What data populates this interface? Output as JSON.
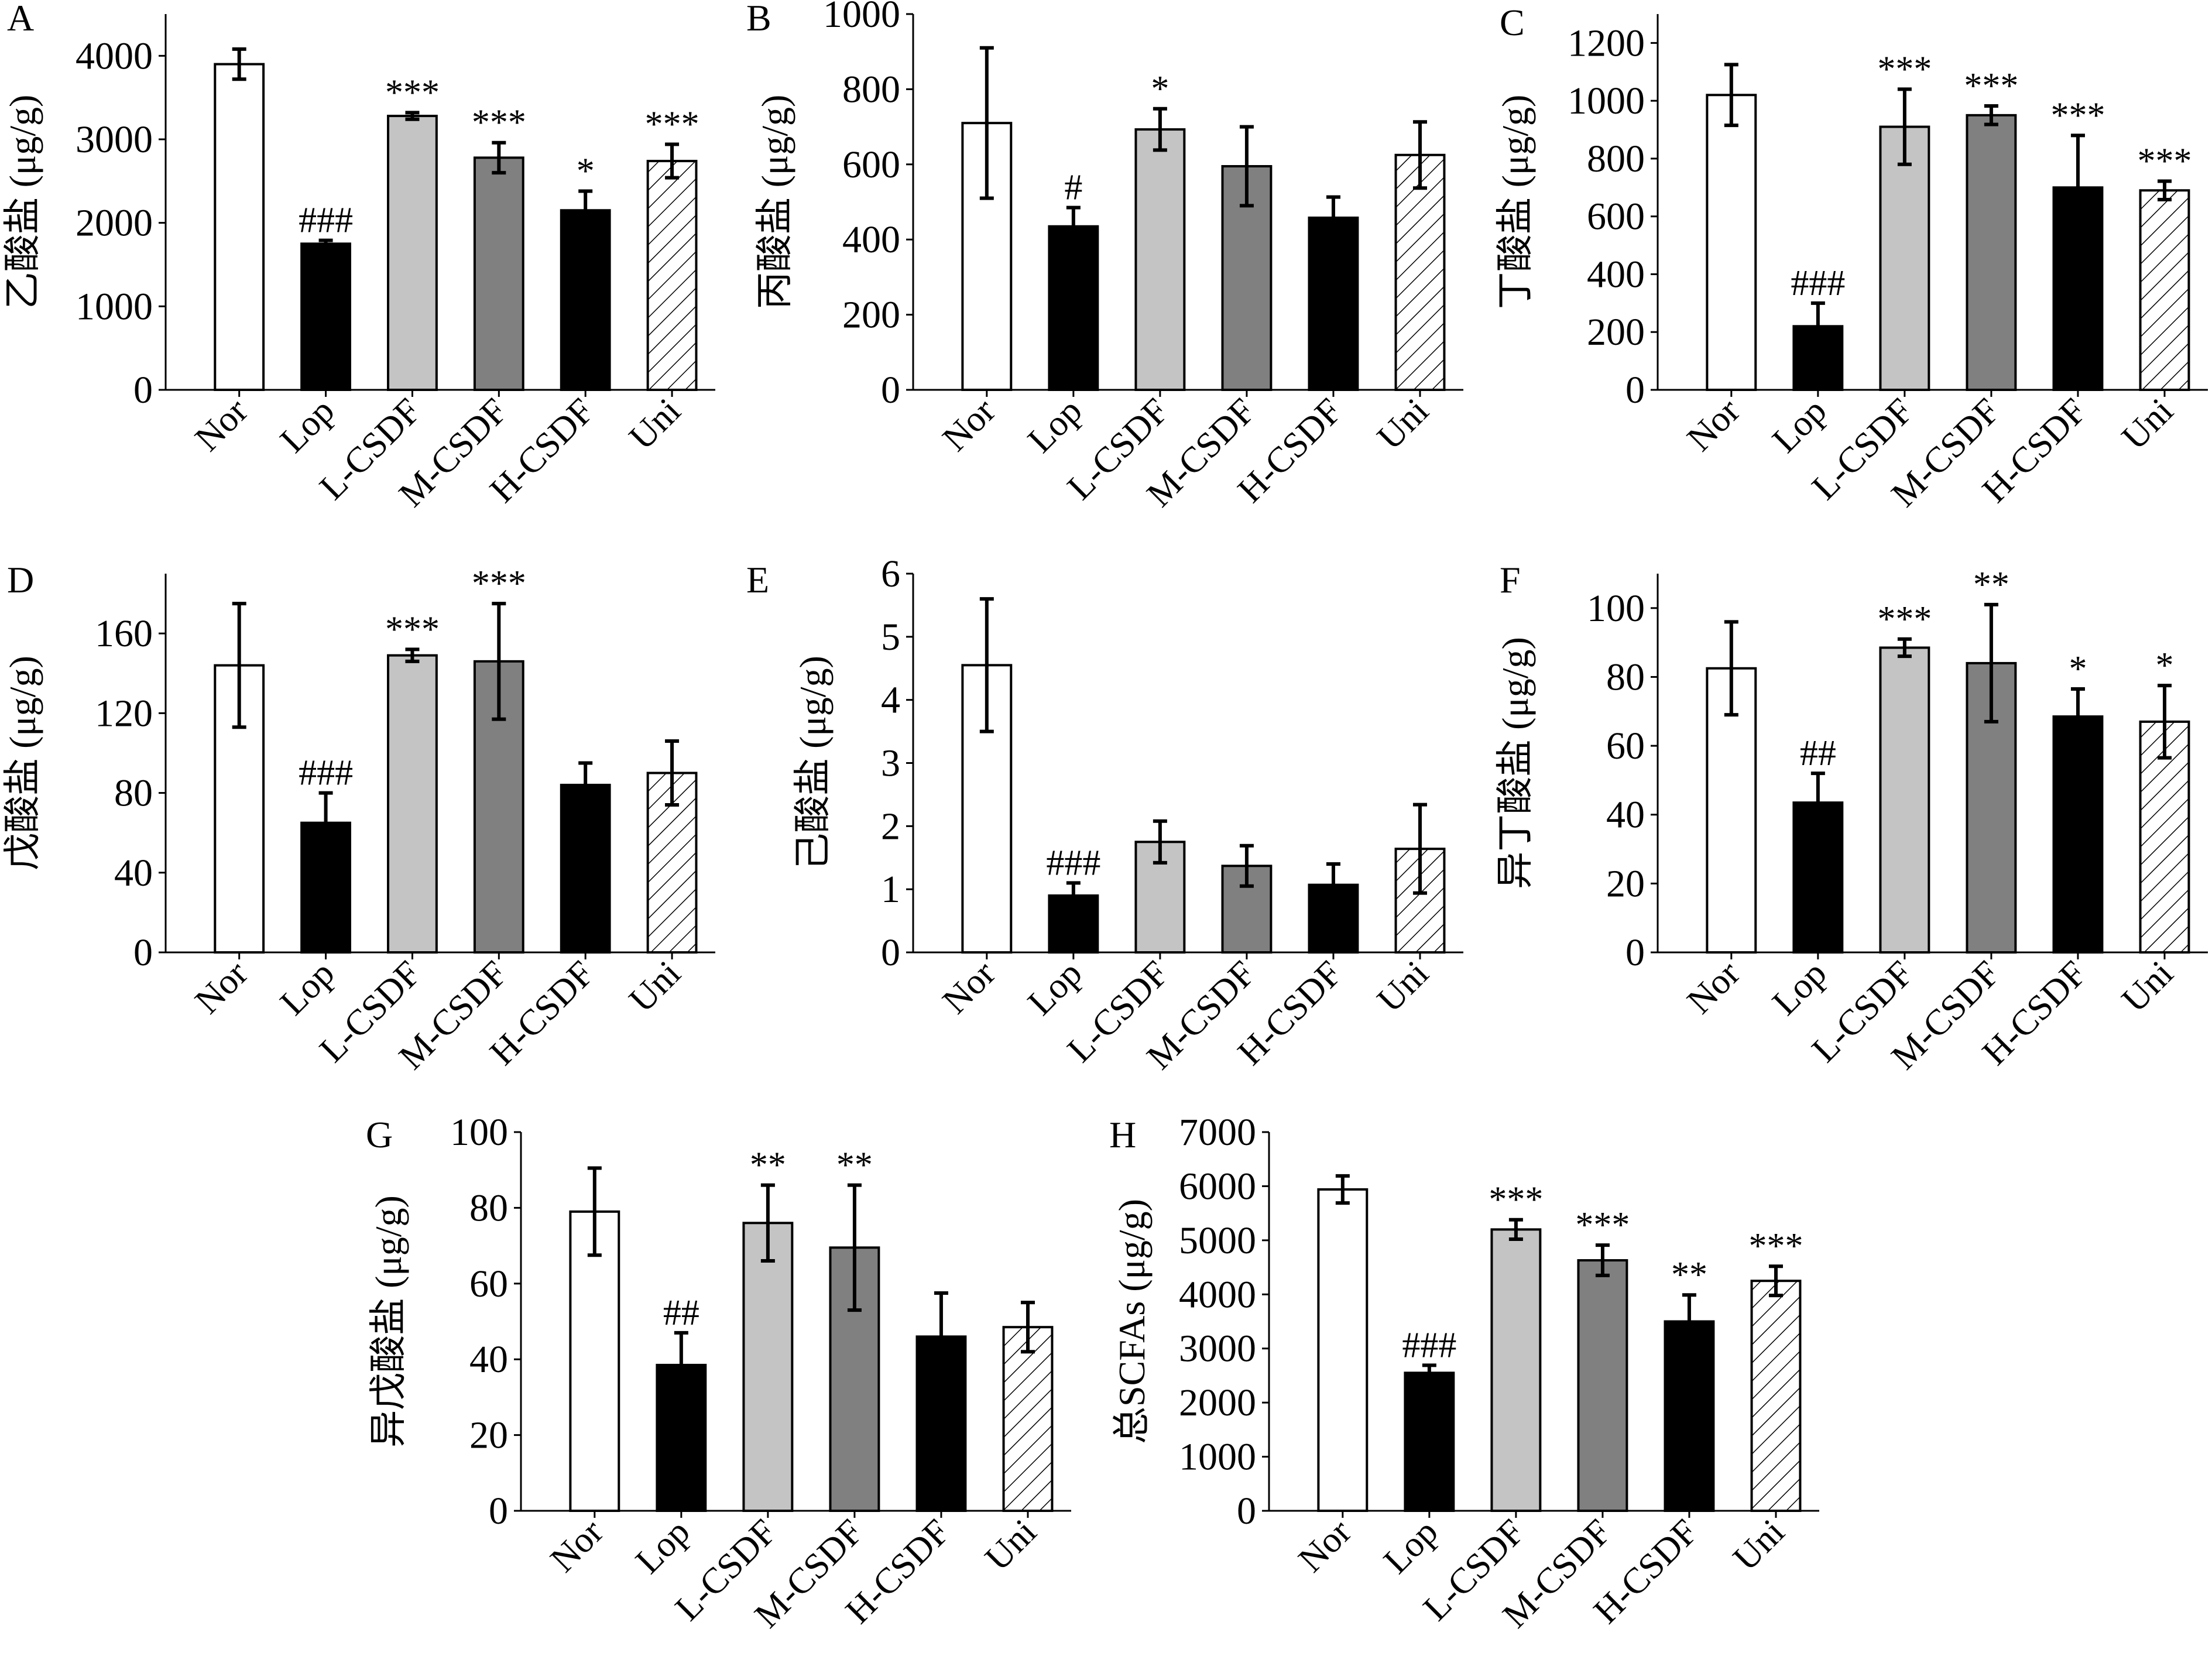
{
  "figure": {
    "categories": [
      "Nor",
      "Lop",
      "L-CSDF",
      "M-CSDF",
      "H-CSDF",
      "Uni"
    ],
    "bar_styles": [
      {
        "group": "Nor",
        "fill": "#ffffff",
        "pattern": "none"
      },
      {
        "group": "Lop",
        "fill": "#000000",
        "pattern": "none"
      },
      {
        "group": "L-CSDF",
        "fill": "#c4c4c4",
        "pattern": "none"
      },
      {
        "group": "M-CSDF",
        "fill": "#808080",
        "pattern": "none"
      },
      {
        "group": "H-CSDF",
        "fill": "#000000",
        "pattern": "none"
      },
      {
        "group": "Uni",
        "fill": "#ffffff",
        "pattern": "diagonal-hatch"
      }
    ]
  },
  "chart_data": [
    {
      "panel": "A",
      "type": "bar",
      "title": "",
      "xlabel": "",
      "ylabel": "乙酸盐 (μg/g)",
      "ylim": [
        0,
        4500
      ],
      "yticks": [
        0,
        1000,
        2000,
        3000,
        4000
      ],
      "categories": [
        "Nor",
        "Lop",
        "L-CSDF",
        "M-CSDF",
        "H-CSDF",
        "Uni"
      ],
      "values": [
        3900,
        1750,
        3280,
        2780,
        2150,
        2740
      ],
      "errors": [
        180,
        40,
        40,
        180,
        230,
        200
      ],
      "annotations": [
        "",
        "###",
        "***",
        "***",
        "*",
        "***"
      ]
    },
    {
      "panel": "B",
      "type": "bar",
      "title": "",
      "xlabel": "",
      "ylabel": "丙酸盐 (μg/g)",
      "ylim": [
        0,
        1000
      ],
      "yticks": [
        0,
        200,
        400,
        600,
        800,
        1000
      ],
      "categories": [
        "Nor",
        "Lop",
        "L-CSDF",
        "M-CSDF",
        "H-CSDF",
        "Uni"
      ],
      "values": [
        710,
        435,
        693,
        595,
        458,
        625
      ],
      "errors": [
        200,
        50,
        55,
        105,
        55,
        88
      ],
      "annotations": [
        "",
        "#",
        "*",
        "",
        "",
        ""
      ]
    },
    {
      "panel": "C",
      "type": "bar",
      "title": "",
      "xlabel": "",
      "ylabel": "丁酸盐 (μg/g)",
      "ylim": [
        0,
        1300
      ],
      "yticks": [
        0,
        200,
        400,
        600,
        800,
        1000,
        1200
      ],
      "categories": [
        "Nor",
        "Lop",
        "L-CSDF",
        "M-CSDF",
        "H-CSDF",
        "Uni"
      ],
      "values": [
        1020,
        220,
        910,
        950,
        700,
        690
      ],
      "errors": [
        105,
        80,
        130,
        32,
        180,
        32
      ],
      "annotations": [
        "",
        "###",
        "***",
        "***",
        "***",
        "***"
      ]
    },
    {
      "panel": "D",
      "type": "bar",
      "title": "",
      "xlabel": "",
      "ylabel": "戊酸盐 (μg/g)",
      "ylim": [
        0,
        190
      ],
      "yticks": [
        0,
        40,
        80,
        120,
        160
      ],
      "categories": [
        "Nor",
        "Lop",
        "L-CSDF",
        "M-CSDF",
        "H-CSDF",
        "Uni"
      ],
      "values": [
        144,
        65,
        149,
        146,
        84,
        90
      ],
      "errors": [
        31,
        15,
        3,
        29,
        11,
        16
      ],
      "annotations": [
        "",
        "###",
        "***",
        "***",
        "",
        ""
      ]
    },
    {
      "panel": "E",
      "type": "bar",
      "title": "",
      "xlabel": "",
      "ylabel": "己酸盐 (μg/g)",
      "ylim": [
        0,
        6
      ],
      "yticks": [
        0,
        1,
        2,
        3,
        4,
        5,
        6
      ],
      "categories": [
        "Nor",
        "Lop",
        "L-CSDF",
        "M-CSDF",
        "H-CSDF",
        "Uni"
      ],
      "values": [
        4.55,
        0.9,
        1.75,
        1.37,
        1.07,
        1.64
      ],
      "errors": [
        1.05,
        0.2,
        0.33,
        0.32,
        0.33,
        0.7
      ],
      "annotations": [
        "",
        "###",
        "",
        "",
        "",
        ""
      ]
    },
    {
      "panel": "F",
      "type": "bar",
      "title": "",
      "xlabel": "",
      "ylabel": "异丁酸盐 (μg/g)",
      "ylim": [
        0,
        110
      ],
      "yticks": [
        0,
        20,
        40,
        60,
        80,
        100
      ],
      "categories": [
        "Nor",
        "Lop",
        "L-CSDF",
        "M-CSDF",
        "H-CSDF",
        "Uni"
      ],
      "values": [
        82.5,
        43.5,
        88.5,
        84,
        68.5,
        67
      ],
      "errors": [
        13.5,
        8.5,
        2.5,
        17,
        8,
        10.5
      ],
      "annotations": [
        "",
        "##",
        "***",
        "**",
        "*",
        "*"
      ]
    },
    {
      "panel": "G",
      "type": "bar",
      "title": "",
      "xlabel": "",
      "ylabel": "异戊酸盐 (μg/g)",
      "ylim": [
        0,
        100
      ],
      "yticks": [
        0,
        20,
        40,
        60,
        80,
        100
      ],
      "categories": [
        "Nor",
        "Lop",
        "L-CSDF",
        "M-CSDF",
        "H-CSDF",
        "Uni"
      ],
      "values": [
        79,
        38.5,
        76,
        69.5,
        46,
        48.5
      ],
      "errors": [
        11.5,
        8.5,
        10,
        16.5,
        11.5,
        6.5
      ],
      "annotations": [
        "",
        "##",
        "**",
        "**",
        "",
        ""
      ]
    },
    {
      "panel": "H",
      "type": "bar",
      "title": "",
      "xlabel": "",
      "ylabel": "总SCFAs (μg/g)",
      "ylim": [
        0,
        7000
      ],
      "yticks": [
        0,
        1000,
        2000,
        3000,
        4000,
        5000,
        6000,
        7000
      ],
      "categories": [
        "Nor",
        "Lop",
        "L-CSDF",
        "M-CSDF",
        "H-CSDF",
        "Uni"
      ],
      "values": [
        5940,
        2550,
        5200,
        4630,
        3500,
        4250
      ],
      "errors": [
        250,
        140,
        180,
        280,
        490,
        270
      ],
      "annotations": [
        "",
        "###",
        "***",
        "***",
        "**",
        "***"
      ]
    }
  ]
}
